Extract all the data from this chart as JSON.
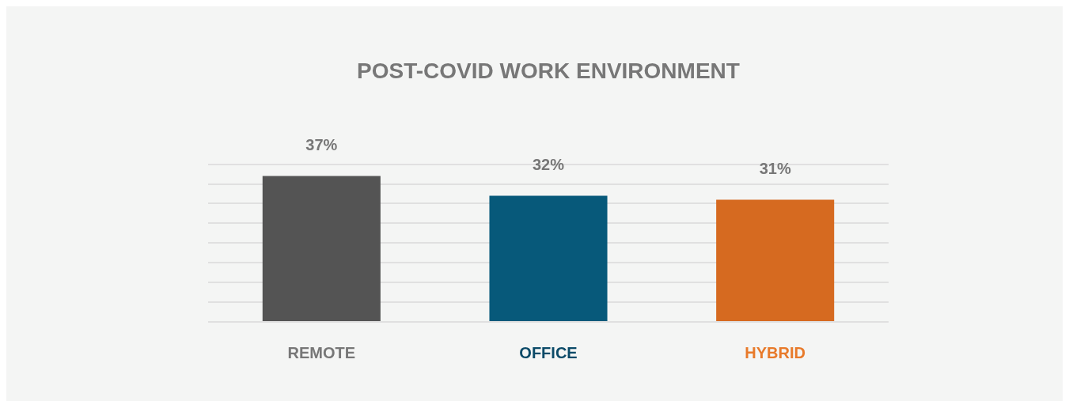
{
  "chart_data": {
    "type": "bar",
    "title": "POST-COVID WORK ENVIRONMENT",
    "categories": [
      "REMOTE",
      "OFFICE",
      "HYBRID"
    ],
    "values": [
      37,
      32,
      31
    ],
    "colors": [
      "#545454",
      "#07597a",
      "#d66a20"
    ],
    "value_labels": [
      "37%",
      "32%",
      "31%"
    ],
    "tick_labels": "x",
    "grid": "y",
    "legend": false
  }
}
